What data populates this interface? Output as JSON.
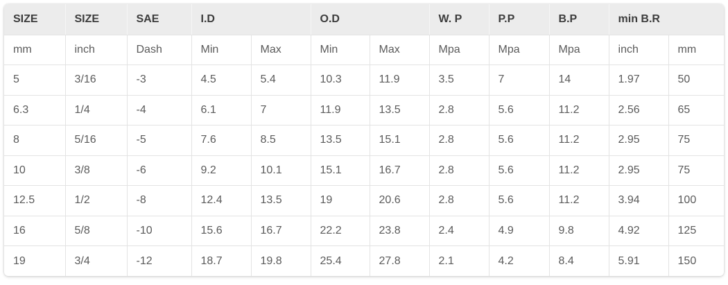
{
  "header": [
    "SIZE",
    "SIZE",
    "SAE",
    "I.D",
    "O.D",
    "W. P",
    "P.P",
    "B.P",
    "min B.R"
  ],
  "units": [
    "mm",
    "inch",
    "Dash",
    "Min",
    "Max",
    "Min",
    "Max",
    "Mpa",
    "Mpa",
    "Mpa",
    "inch",
    "mm"
  ],
  "rows": [
    [
      "5",
      "3/16",
      "-3",
      "4.5",
      "5.4",
      "10.3",
      "11.9",
      "3.5",
      "7",
      "14",
      "1.97",
      "50"
    ],
    [
      "6.3",
      "1/4",
      "-4",
      "6.1",
      "7",
      "11.9",
      "13.5",
      "2.8",
      "5.6",
      "11.2",
      "2.56",
      "65"
    ],
    [
      "8",
      "5/16",
      "-5",
      "7.6",
      "8.5",
      "13.5",
      "15.1",
      "2.8",
      "5.6",
      "11.2",
      "2.95",
      "75"
    ],
    [
      "10",
      "3/8",
      "-6",
      "9.2",
      "10.1",
      "15.1",
      "16.7",
      "2.8",
      "5.6",
      "11.2",
      "2.95",
      "75"
    ],
    [
      "12.5",
      "1/2",
      "-8",
      "12.4",
      "13.5",
      "19",
      "20.6",
      "2.8",
      "5.6",
      "11.2",
      "3.94",
      "100"
    ],
    [
      "16",
      "5/8",
      "-10",
      "15.6",
      "16.7",
      "22.2",
      "23.8",
      "2.4",
      "4.9",
      "9.8",
      "4.92",
      "125"
    ],
    [
      "19",
      "3/4",
      "-12",
      "18.7",
      "19.8",
      "25.4",
      "27.8",
      "2.1",
      "4.2",
      "8.4",
      "5.91",
      "150"
    ]
  ]
}
